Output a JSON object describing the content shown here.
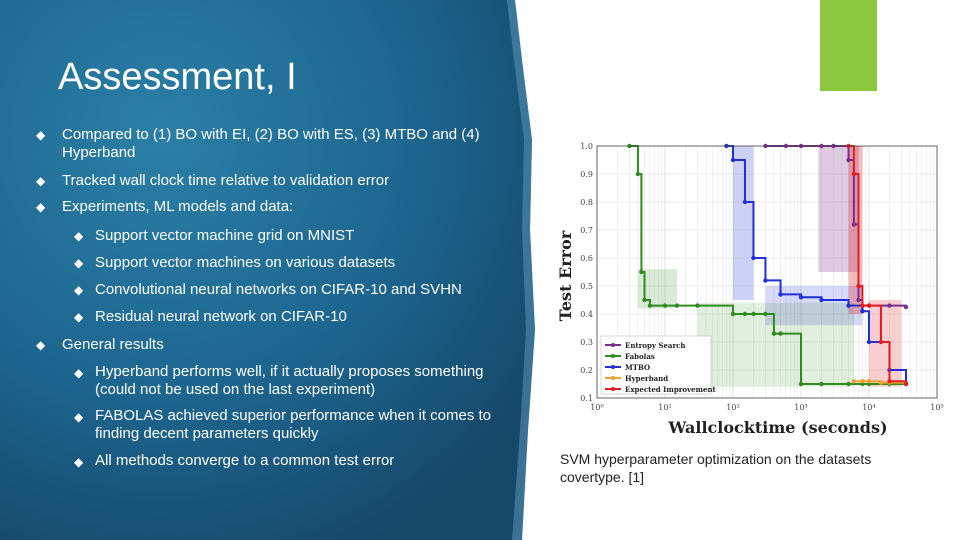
{
  "slide": {
    "title": "Assessment, I",
    "caption": "SVM hyperparameter optimization on the datasets covertype. [1]",
    "colors": {
      "panel": "#1f6f96",
      "accent_green": "#8dc63f",
      "text": "#ffffff"
    }
  },
  "bullets": [
    {
      "level": 1,
      "text": "Compared to (1) BO with EI, (2) BO with ES, (3) MTBO and (4) Hyperband"
    },
    {
      "level": 1,
      "text": "Tracked wall clock time relative to validation error"
    },
    {
      "level": 1,
      "text": "Experiments, ML models and data:"
    },
    {
      "level": 2,
      "text": "Support vector machine grid on MNIST"
    },
    {
      "level": 2,
      "text": "Support vector machines on various datasets"
    },
    {
      "level": 2,
      "text": "Convolutional neural networks on CIFAR-10 and SVHN"
    },
    {
      "level": 2,
      "text": "Residual neural network on CIFAR-10"
    },
    {
      "level": 1,
      "text": "General results"
    },
    {
      "level": 2,
      "text": "Hyperband performs well, if it actually proposes something (could not be used on the last experiment)"
    },
    {
      "level": 2,
      "text": "FABOLAS achieved superior performance when it comes to finding decent parameters quickly"
    },
    {
      "level": 2,
      "text": "All methods converge to a common test error"
    }
  ],
  "chart_data": {
    "type": "line",
    "xlabel": "Wallclocktime (seconds)",
    "ylabel": "Test Error",
    "xscale": "log",
    "xlim": [
      1,
      100000
    ],
    "ylim": [
      0.1,
      1.0
    ],
    "xticks": [
      "10⁰",
      "10¹",
      "10²",
      "10³",
      "10⁴",
      "10⁵"
    ],
    "yticks": [
      "0.1",
      "0.2",
      "0.3",
      "0.4",
      "0.5",
      "0.6",
      "0.7",
      "0.8",
      "0.9",
      "1.0"
    ],
    "grid": true,
    "legend_position": "bottom-left",
    "series": [
      {
        "name": "Entropy Search",
        "color": "#7b2d8e",
        "x": [
          300,
          600,
          1000,
          2000,
          3000,
          5000,
          6000,
          7000,
          8000,
          10000,
          20000,
          35000
        ],
        "y": [
          1.0,
          1.0,
          1.0,
          1.0,
          1.0,
          0.95,
          0.72,
          0.45,
          0.43,
          0.43,
          0.43,
          0.425
        ]
      },
      {
        "name": "Fabolas",
        "color": "#2e8b1e",
        "x": [
          3,
          4,
          4.5,
          5,
          6,
          10,
          15,
          30,
          100,
          150,
          200,
          300,
          400,
          500,
          1000,
          2000,
          5000,
          8000,
          10000,
          20000,
          35000
        ],
        "y": [
          1.0,
          0.9,
          0.55,
          0.45,
          0.43,
          0.43,
          0.43,
          0.43,
          0.4,
          0.4,
          0.4,
          0.4,
          0.33,
          0.33,
          0.15,
          0.15,
          0.15,
          0.15,
          0.15,
          0.15,
          0.15
        ]
      },
      {
        "name": "MTBO",
        "color": "#1f2fd6",
        "x": [
          80,
          100,
          150,
          200,
          300,
          500,
          1000,
          2000,
          5000,
          8000,
          10000,
          20000,
          35000
        ],
        "y": [
          1.0,
          0.95,
          0.8,
          0.6,
          0.52,
          0.47,
          0.46,
          0.45,
          0.43,
          0.41,
          0.3,
          0.2,
          0.15
        ]
      },
      {
        "name": "Hyperband",
        "color": "#f0a030",
        "x": [
          6000,
          8000,
          10000,
          15000,
          20000,
          35000
        ],
        "y": [
          0.16,
          0.16,
          0.16,
          0.155,
          0.155,
          0.155
        ]
      },
      {
        "name": "Expected Improvement",
        "color": "#e02020",
        "x": [
          5000,
          6000,
          7000,
          8000,
          10000,
          15000,
          20000,
          35000
        ],
        "y": [
          1.0,
          0.9,
          0.5,
          0.43,
          0.43,
          0.3,
          0.16,
          0.15
        ]
      }
    ]
  }
}
